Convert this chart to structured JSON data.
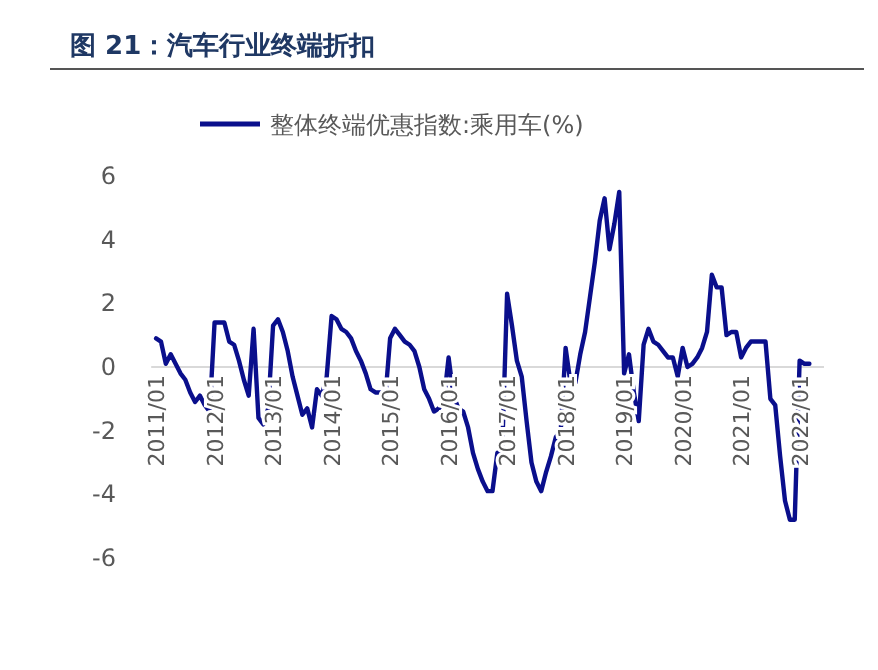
{
  "chart_data": {
    "type": "line",
    "title": "图 21：汽车行业终端折扣",
    "legend": "top",
    "line_style": "solid",
    "xlim": [
      "2010-12",
      "2022-06"
    ],
    "ylim": [
      -6,
      6
    ],
    "xticks": [
      {
        "value": "2011-01",
        "label": "2011/01"
      },
      {
        "value": "2012-01",
        "label": "2012/01"
      },
      {
        "value": "2013-01",
        "label": "2013/01"
      },
      {
        "value": "2014-01",
        "label": "2014/01"
      },
      {
        "value": "2015-01",
        "label": "2015/01"
      },
      {
        "value": "2016-01",
        "label": "2016/01"
      },
      {
        "value": "2017-01",
        "label": "2017/01"
      },
      {
        "value": "2018-01",
        "label": "2018/01"
      },
      {
        "value": "2019-01",
        "label": "2019/01"
      },
      {
        "value": "2020-01",
        "label": "2020/01"
      },
      {
        "value": "2021-01",
        "label": "2021/01"
      },
      {
        "value": "2022-01",
        "label": "2022/01"
      }
    ],
    "yticks": [
      -6,
      -4,
      -2,
      0,
      2,
      4,
      6
    ],
    "x": [
      "2011-01",
      "2011-02",
      "2011-03",
      "2011-04",
      "2011-05",
      "2011-06",
      "2011-07",
      "2011-08",
      "2011-09",
      "2011-10",
      "2011-11",
      "2011-12",
      "2012-01",
      "2012-02",
      "2012-03",
      "2012-04",
      "2012-05",
      "2012-06",
      "2012-07",
      "2012-08",
      "2012-09",
      "2012-10",
      "2012-11",
      "2012-12",
      "2013-01",
      "2013-02",
      "2013-03",
      "2013-04",
      "2013-05",
      "2013-06",
      "2013-07",
      "2013-08",
      "2013-09",
      "2013-10",
      "2013-11",
      "2013-12",
      "2014-01",
      "2014-02",
      "2014-03",
      "2014-04",
      "2014-05",
      "2014-06",
      "2014-07",
      "2014-08",
      "2014-09",
      "2014-10",
      "2014-11",
      "2014-12",
      "2015-01",
      "2015-02",
      "2015-03",
      "2015-04",
      "2015-05",
      "2015-06",
      "2015-07",
      "2015-08",
      "2015-09",
      "2015-10",
      "2015-11",
      "2015-12",
      "2016-01",
      "2016-02",
      "2016-03",
      "2016-04",
      "2016-05",
      "2016-06",
      "2016-07",
      "2016-08",
      "2016-09",
      "2016-10",
      "2016-11",
      "2016-12",
      "2017-01",
      "2017-02",
      "2017-03",
      "2017-04",
      "2017-05",
      "2017-06",
      "2017-07",
      "2017-08",
      "2017-09",
      "2017-10",
      "2017-11",
      "2017-12",
      "2018-01",
      "2018-02",
      "2018-03",
      "2018-04",
      "2018-05",
      "2018-06",
      "2018-07",
      "2018-08",
      "2018-09",
      "2018-10",
      "2018-11",
      "2018-12",
      "2019-01",
      "2019-02",
      "2019-03",
      "2019-04",
      "2019-05",
      "2019-06",
      "2019-07",
      "2019-08",
      "2019-09",
      "2019-10",
      "2019-11",
      "2019-12",
      "2020-01",
      "2020-02",
      "2020-03",
      "2020-04",
      "2020-05",
      "2020-06",
      "2020-07",
      "2020-08",
      "2020-09",
      "2020-10",
      "2020-11",
      "2020-12",
      "2021-01",
      "2021-02",
      "2021-03",
      "2021-04",
      "2021-05",
      "2021-06",
      "2021-07",
      "2021-08",
      "2021-09",
      "2021-10",
      "2021-11",
      "2021-12",
      "2022-01",
      "2022-02",
      "2022-03"
    ],
    "series": [
      {
        "name": "整体终端优惠指数:乘用车(%)",
        "color": "#0a0f8c",
        "values": [
          0.9,
          0.8,
          0.1,
          0.4,
          0.1,
          -0.2,
          -0.4,
          -0.8,
          -1.1,
          -0.9,
          -1.2,
          -1.4,
          1.4,
          1.4,
          1.4,
          0.8,
          0.7,
          0.2,
          -0.4,
          -0.9,
          1.2,
          -1.6,
          -1.8,
          -1.3,
          1.3,
          1.5,
          1.1,
          0.5,
          -0.3,
          -0.9,
          -1.5,
          -1.3,
          -1.9,
          -0.7,
          -0.9,
          -0.3,
          1.6,
          1.5,
          1.2,
          1.1,
          0.9,
          0.5,
          0.2,
          -0.2,
          -0.7,
          -0.8,
          -0.8,
          -1.0,
          0.9,
          1.2,
          1.0,
          0.8,
          0.7,
          0.5,
          0.0,
          -0.7,
          -1.0,
          -1.4,
          -1.3,
          -1.1,
          0.3,
          -0.9,
          -1.3,
          -1.4,
          -1.9,
          -2.7,
          -3.2,
          -3.6,
          -3.9,
          -3.9,
          -2.7,
          -2.6,
          2.3,
          1.3,
          0.2,
          -0.3,
          -1.7,
          -3.0,
          -3.6,
          -3.9,
          -3.3,
          -2.8,
          -2.2,
          -2.0,
          0.6,
          -0.5,
          -0.5,
          0.4,
          1.1,
          2.2,
          3.3,
          4.6,
          5.3,
          3.7,
          4.5,
          5.5,
          -0.2,
          0.4,
          -0.8,
          -1.7,
          0.7,
          1.2,
          0.8,
          0.7,
          0.5,
          0.3,
          0.3,
          -0.3,
          0.6,
          0.0,
          0.1,
          0.3,
          0.6,
          1.1,
          2.9,
          2.5,
          2.5,
          1.0,
          1.1,
          1.1,
          0.3,
          0.6,
          0.8,
          0.8,
          0.8,
          0.8,
          -1.0,
          -1.2,
          -2.8,
          -4.2,
          -4.8,
          -4.8,
          0.2,
          0.1,
          0.1
        ]
      }
    ]
  }
}
